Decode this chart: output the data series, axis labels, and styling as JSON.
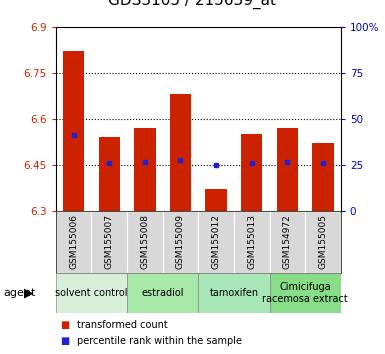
{
  "title": "GDS3105 / 215639_at",
  "samples": [
    "GSM155006",
    "GSM155007",
    "GSM155008",
    "GSM155009",
    "GSM155012",
    "GSM155013",
    "GSM154972",
    "GSM155005"
  ],
  "bar_values": [
    6.82,
    6.54,
    6.57,
    6.68,
    6.37,
    6.55,
    6.57,
    6.52
  ],
  "bar_base": 6.3,
  "percentile_values": [
    6.545,
    6.455,
    6.46,
    6.465,
    6.45,
    6.455,
    6.46,
    6.455
  ],
  "ylim": [
    6.3,
    6.9
  ],
  "yticks_left": [
    6.3,
    6.45,
    6.6,
    6.75,
    6.9
  ],
  "yticks_right": [
    0,
    25,
    50,
    75,
    100
  ],
  "bar_color": "#cc2200",
  "percentile_color": "#2222cc",
  "agent_groups": [
    {
      "label": "solvent control",
      "start": 0,
      "end": 2,
      "color": "#d8f0d8"
    },
    {
      "label": "estradiol",
      "start": 2,
      "end": 4,
      "color": "#a8e8a8"
    },
    {
      "label": "tamoxifen",
      "start": 4,
      "end": 6,
      "color": "#a8e8b8"
    },
    {
      "label": "Cimicifuga\nracemosa extract",
      "start": 6,
      "end": 8,
      "color": "#88dd88"
    }
  ],
  "ylabel_left_color": "#cc2200",
  "ylabel_right_color": "#0000cc",
  "title_fontsize": 11,
  "tick_fontsize": 7.5,
  "sample_fontsize": 6.5,
  "agent_fontsize": 7,
  "legend_fontsize": 7,
  "grid_yticks": [
    6.45,
    6.6,
    6.75
  ]
}
